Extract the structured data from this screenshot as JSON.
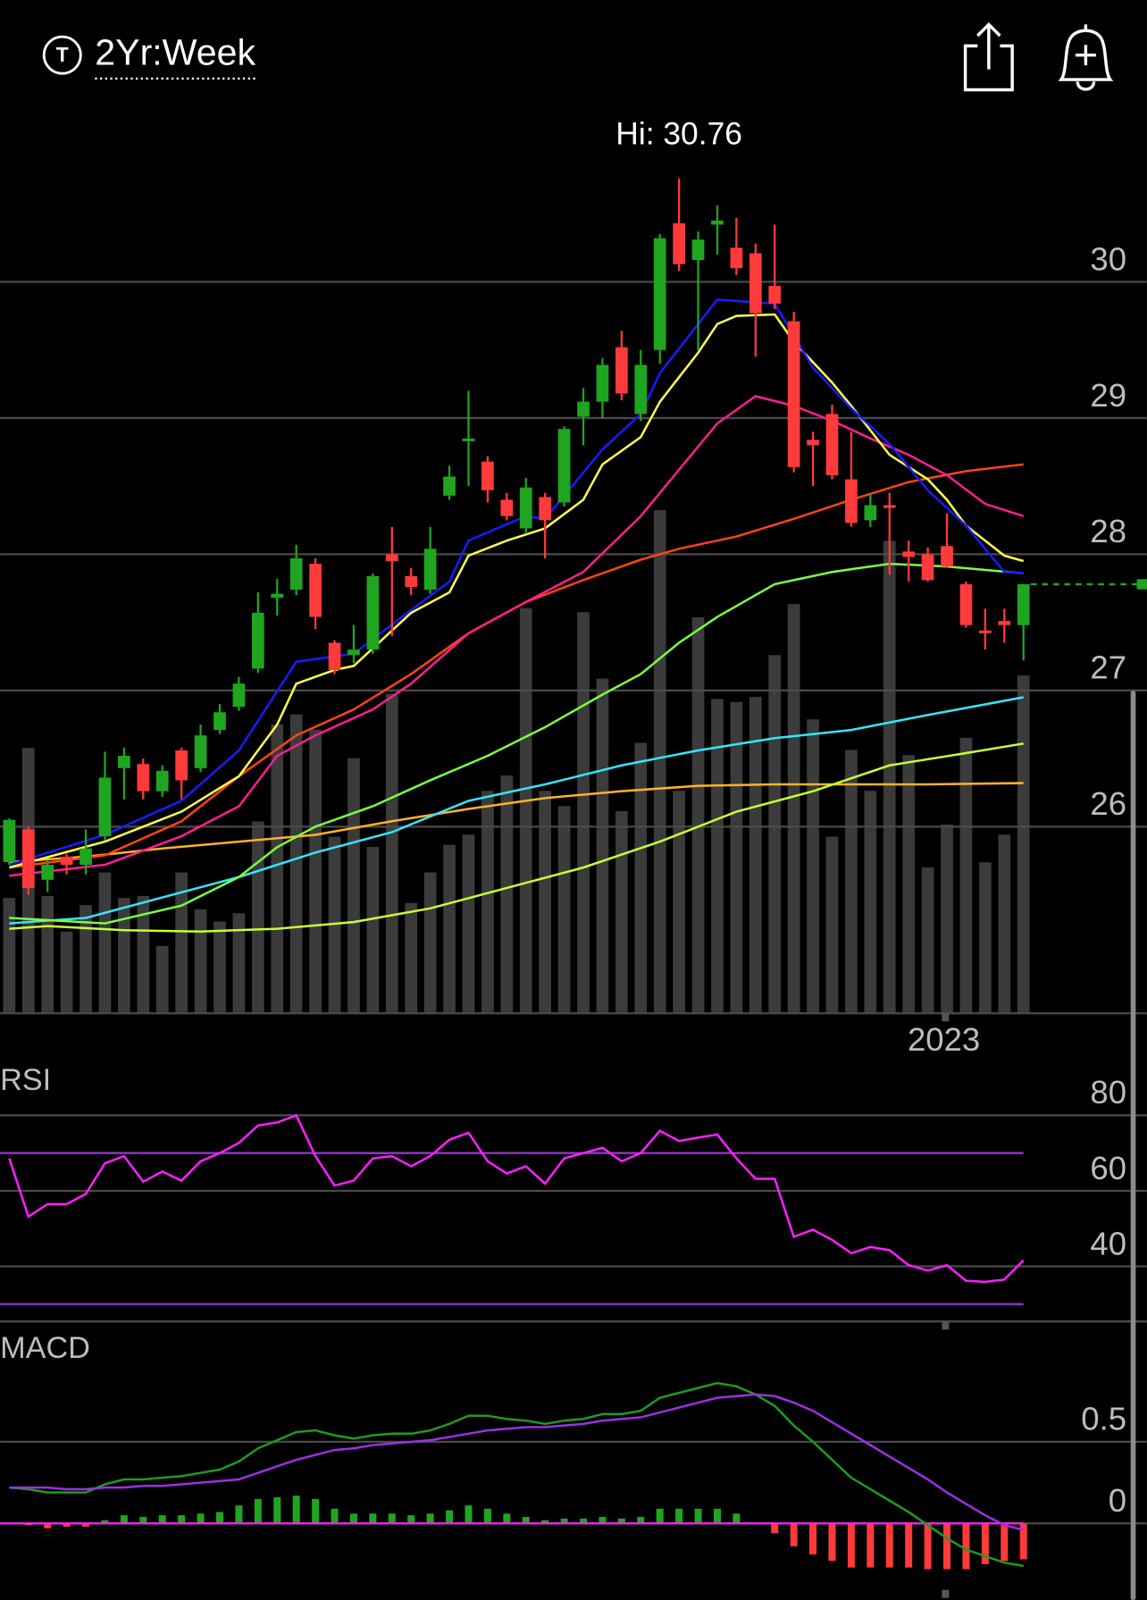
{
  "header": {
    "symbol_icon": "T",
    "period": "2Yr:Week"
  },
  "chart_data": [
    {
      "type": "candlestick",
      "annotation": "Hi: 30.76",
      "up_color": "#1fa51f",
      "down_color": "#ff3a3a",
      "grid": true,
      "categories": [
        null,
        null,
        null,
        null,
        null,
        null,
        null,
        null,
        null,
        null,
        null,
        null,
        null,
        null,
        null,
        null,
        null,
        null,
        null,
        null,
        null,
        null,
        null,
        null,
        null,
        null,
        null,
        null,
        null,
        null,
        null,
        null,
        null,
        null,
        null,
        null,
        null,
        null,
        null,
        null,
        null,
        null,
        null,
        null,
        null,
        null,
        null,
        null,
        null,
        "2023",
        null,
        null,
        null,
        null
      ],
      "open": [
        25.74,
        25.98,
        25.61,
        25.78,
        25.72,
        25.93,
        26.43,
        26.46,
        26.26,
        26.56,
        26.43,
        26.71,
        26.88,
        27.16,
        27.68,
        27.74,
        27.93,
        27.35,
        27.26,
        27.3,
        28.0,
        27.84,
        27.74,
        28.43,
        28.83,
        28.68,
        28.4,
        28.19,
        28.42,
        28.38,
        29.01,
        29.12,
        29.52,
        29.03,
        29.5,
        30.43,
        30.16,
        30.42,
        30.25,
        30.21,
        29.97,
        29.71,
        28.84,
        29.03,
        28.55,
        28.25,
        28.36,
        28.02,
        28.0,
        28.06,
        27.78,
        27.44,
        27.51,
        27.48
      ],
      "high": [
        26.06,
        26.0,
        25.75,
        25.8,
        25.98,
        26.55,
        26.58,
        26.5,
        26.45,
        26.58,
        26.75,
        26.9,
        27.1,
        27.72,
        27.82,
        28.07,
        27.97,
        27.37,
        27.48,
        27.86,
        28.2,
        27.9,
        28.2,
        28.65,
        29.2,
        28.72,
        28.45,
        28.56,
        28.45,
        28.94,
        29.22,
        29.44,
        29.64,
        29.5,
        30.35,
        30.76,
        30.37,
        30.56,
        30.47,
        30.28,
        30.42,
        29.78,
        28.9,
        29.1,
        28.9,
        28.45,
        28.45,
        28.1,
        28.05,
        28.3,
        27.8,
        27.6,
        27.6,
        27.78
      ],
      "low": [
        25.72,
        25.5,
        25.52,
        25.65,
        25.65,
        25.9,
        26.2,
        26.2,
        26.22,
        26.2,
        26.4,
        26.68,
        26.85,
        27.13,
        27.55,
        27.7,
        27.45,
        27.12,
        27.2,
        27.27,
        27.4,
        27.7,
        27.71,
        28.4,
        28.5,
        28.38,
        28.25,
        28.15,
        27.97,
        28.35,
        28.8,
        29.0,
        29.13,
        28.98,
        29.4,
        30.08,
        29.5,
        30.2,
        30.05,
        29.45,
        29.8,
        28.6,
        28.5,
        28.55,
        28.2,
        28.2,
        27.85,
        27.8,
        27.8,
        27.9,
        27.46,
        27.3,
        27.35,
        27.22
      ],
      "close": [
        26.05,
        25.55,
        25.72,
        25.72,
        25.84,
        26.36,
        26.52,
        26.26,
        26.41,
        26.34,
        26.67,
        26.84,
        27.05,
        27.57,
        27.71,
        27.97,
        27.54,
        27.15,
        27.3,
        27.84,
        27.95,
        27.76,
        28.04,
        28.57,
        28.85,
        28.47,
        28.28,
        28.49,
        28.25,
        28.92,
        29.12,
        29.39,
        29.18,
        29.39,
        30.32,
        30.13,
        30.31,
        30.45,
        30.1,
        29.77,
        29.84,
        28.64,
        28.8,
        28.58,
        28.23,
        28.36,
        28.34,
        27.98,
        27.81,
        27.91,
        27.48,
        27.42,
        27.48,
        27.78
      ],
      "ylim": [
        24.63,
        31.32
      ],
      "yticks": [
        26,
        27,
        28,
        29,
        30
      ],
      "last_price": 27.78,
      "last_price_color": "#1fa51f",
      "volume": {
        "color": "#3b3b3b",
        "ylim": [
          0,
          893
        ],
        "values": [
          113,
          260,
          115,
          80,
          106,
          138,
          113,
          115,
          66,
          138,
          102,
          90,
          98,
          188,
          283,
          293,
          278,
          173,
          250,
          163,
          313,
          108,
          138,
          165,
          175,
          218,
          233,
          397,
          218,
          203,
          393,
          328,
          198,
          265,
          493,
          218,
          388,
          308,
          305,
          310,
          351,
          401,
          288,
          173,
          258,
          218,
          463,
          253,
          143,
          185,
          270,
          148,
          175,
          331
        ]
      },
      "overlays": [
        {
          "color": "#ffb224",
          "x": [
            0,
            4,
            8,
            12,
            16,
            20,
            24,
            28,
            32,
            36,
            40,
            44,
            48,
            53
          ],
          "values": [
            25.74,
            25.78,
            25.84,
            25.89,
            25.94,
            26.04,
            26.13,
            26.21,
            26.26,
            26.3,
            26.31,
            26.31,
            26.31,
            26.32
          ]
        },
        {
          "color": "#c8ff33",
          "x": [
            0,
            2,
            6,
            10,
            14,
            18,
            22,
            26,
            30,
            34,
            38,
            42,
            46,
            50,
            53
          ],
          "values": [
            25.25,
            25.27,
            25.24,
            25.23,
            25.25,
            25.3,
            25.4,
            25.55,
            25.7,
            25.89,
            26.11,
            26.26,
            26.45,
            26.54,
            26.61
          ]
        },
        {
          "color": "#33e6ff",
          "x": [
            0,
            4,
            8,
            12,
            16,
            20,
            24,
            28,
            32,
            36,
            40,
            44,
            48,
            53
          ],
          "values": [
            25.29,
            25.33,
            25.48,
            25.63,
            25.81,
            25.96,
            26.19,
            26.31,
            26.45,
            26.56,
            26.65,
            26.71,
            26.82,
            26.95
          ]
        },
        {
          "color": "#7cff40",
          "x": [
            0,
            5,
            9,
            12,
            14,
            16,
            19,
            22,
            25,
            28,
            31,
            33,
            35,
            37,
            40,
            43,
            46,
            49,
            53
          ],
          "values": [
            25.33,
            25.29,
            25.42,
            25.63,
            25.85,
            26.0,
            26.15,
            26.34,
            26.52,
            26.73,
            26.97,
            27.12,
            27.35,
            27.54,
            27.78,
            27.87,
            27.93,
            27.91,
            27.86
          ]
        },
        {
          "color": "#ff4414",
          "x": [
            0,
            5,
            9,
            12,
            15,
            18,
            21,
            24,
            27,
            30,
            33,
            35,
            38,
            41,
            44,
            47,
            50,
            53
          ],
          "values": [
            25.7,
            25.79,
            26.04,
            26.37,
            26.67,
            26.86,
            27.12,
            27.42,
            27.65,
            27.81,
            27.96,
            28.04,
            28.13,
            28.26,
            28.4,
            28.53,
            28.61,
            28.66
          ]
        },
        {
          "color": "#ff1f8f",
          "x": [
            0,
            5,
            9,
            12,
            14,
            16,
            19,
            21,
            24,
            27,
            30,
            33,
            35,
            37,
            39,
            41,
            43,
            45,
            47,
            49,
            51,
            53
          ],
          "values": [
            25.64,
            25.72,
            25.93,
            26.15,
            26.52,
            26.67,
            26.86,
            27.05,
            27.42,
            27.65,
            27.87,
            28.28,
            28.62,
            28.96,
            29.16,
            29.09,
            28.98,
            28.85,
            28.73,
            28.58,
            28.37,
            28.28
          ]
        },
        {
          "color": "#ffff4d",
          "x": [
            0,
            5,
            9,
            12,
            14,
            15,
            17,
            18,
            21,
            23,
            24,
            26,
            28,
            30,
            31,
            33,
            34,
            36,
            37,
            38,
            40,
            41,
            43,
            44,
            46,
            48,
            49,
            50,
            52,
            53
          ],
          "values": [
            25.7,
            25.89,
            26.11,
            26.37,
            26.75,
            27.05,
            27.15,
            27.18,
            27.57,
            27.72,
            27.99,
            28.1,
            28.19,
            28.4,
            28.66,
            28.86,
            29.12,
            29.48,
            29.69,
            29.75,
            29.76,
            29.56,
            29.26,
            29.09,
            28.73,
            28.55,
            28.4,
            28.21,
            27.99,
            27.95
          ]
        },
        {
          "color": "#1a1aff",
          "x": [
            0,
            5,
            9,
            12,
            15,
            18,
            21,
            23,
            24,
            27,
            28,
            31,
            33,
            34,
            37,
            40,
            42,
            44,
            46,
            48,
            50,
            52,
            53
          ],
          "values": [
            25.72,
            25.94,
            26.19,
            26.56,
            27.21,
            27.27,
            27.59,
            27.8,
            28.1,
            28.28,
            28.26,
            28.77,
            29.03,
            29.33,
            29.87,
            29.84,
            29.37,
            29.07,
            28.81,
            28.47,
            28.21,
            27.87,
            27.86
          ]
        }
      ]
    },
    {
      "type": "line",
      "title": "RSI",
      "color": "#ff1fff",
      "reference_color": "#9a2fd6",
      "grid": true,
      "values": [
        68.6,
        53.2,
        56.5,
        56.5,
        59.2,
        67.3,
        69.2,
        62.4,
        65.1,
        62.7,
        67.8,
        70.0,
        72.7,
        77.3,
        78.1,
        80.0,
        69.2,
        61.4,
        62.7,
        68.6,
        69.2,
        66.5,
        69.2,
        73.5,
        75.4,
        67.8,
        64.6,
        66.5,
        61.9,
        68.6,
        70.0,
        71.4,
        67.8,
        70.0,
        75.9,
        73.2,
        74.1,
        74.9,
        68.6,
        63.2,
        63.2,
        47.8,
        49.7,
        47.0,
        43.5,
        45.1,
        44.3,
        40.3,
        38.9,
        40.3,
        36.2,
        35.9,
        36.5,
        41.6
      ],
      "reference_lines": [
        70,
        30
      ],
      "ylim": [
        25.41,
        94.32
      ],
      "yticks": [
        40,
        60,
        80
      ]
    },
    {
      "type": "macd",
      "title": "MACD",
      "grid": true,
      "zero_color": "#ff1fff",
      "series": [
        {
          "color": "#1f9a1f",
          "values": [
            0.22,
            0.21,
            0.19,
            0.19,
            0.19,
            0.24,
            0.27,
            0.27,
            0.28,
            0.29,
            0.31,
            0.33,
            0.38,
            0.46,
            0.51,
            0.56,
            0.57,
            0.54,
            0.52,
            0.54,
            0.55,
            0.55,
            0.57,
            0.61,
            0.66,
            0.66,
            0.64,
            0.63,
            0.61,
            0.63,
            0.64,
            0.67,
            0.67,
            0.69,
            0.77,
            0.8,
            0.83,
            0.86,
            0.84,
            0.79,
            0.72,
            0.6,
            0.5,
            0.39,
            0.28,
            0.21,
            0.14,
            0.07,
            -0.01,
            -0.09,
            -0.16,
            -0.2,
            -0.24,
            -0.26
          ]
        },
        {
          "color": "#9b30e0",
          "values": [
            0.22,
            0.22,
            0.22,
            0.21,
            0.21,
            0.22,
            0.22,
            0.23,
            0.23,
            0.24,
            0.25,
            0.26,
            0.27,
            0.31,
            0.35,
            0.39,
            0.42,
            0.45,
            0.46,
            0.48,
            0.49,
            0.5,
            0.51,
            0.53,
            0.55,
            0.57,
            0.58,
            0.59,
            0.59,
            0.6,
            0.61,
            0.63,
            0.64,
            0.65,
            0.68,
            0.71,
            0.74,
            0.77,
            0.78,
            0.79,
            0.78,
            0.74,
            0.69,
            0.62,
            0.55,
            0.48,
            0.41,
            0.34,
            0.27,
            0.19,
            0.12,
            0.05,
            -0.01,
            -0.04
          ]
        }
      ],
      "histogram": {
        "up_color": "#1fa51f",
        "down_color": "#ff3a3a",
        "values": [
          0,
          -0.01,
          -0.03,
          -0.02,
          -0.02,
          0.02,
          0.05,
          0.04,
          0.05,
          0.05,
          0.06,
          0.07,
          0.11,
          0.15,
          0.16,
          0.17,
          0.15,
          0.09,
          0.06,
          0.06,
          0.06,
          0.05,
          0.06,
          0.08,
          0.11,
          0.09,
          0.06,
          0.04,
          0.02,
          0.03,
          0.03,
          0.04,
          0.03,
          0.04,
          0.09,
          0.09,
          0.09,
          0.09,
          0.06,
          0,
          -0.06,
          -0.14,
          -0.19,
          -0.23,
          -0.27,
          -0.27,
          -0.27,
          -0.27,
          -0.28,
          -0.28,
          -0.28,
          -0.25,
          -0.23,
          -0.22
        ]
      },
      "ylim": [
        -0.469,
        1.206
      ],
      "yticks": [
        0,
        0.5
      ]
    }
  ]
}
